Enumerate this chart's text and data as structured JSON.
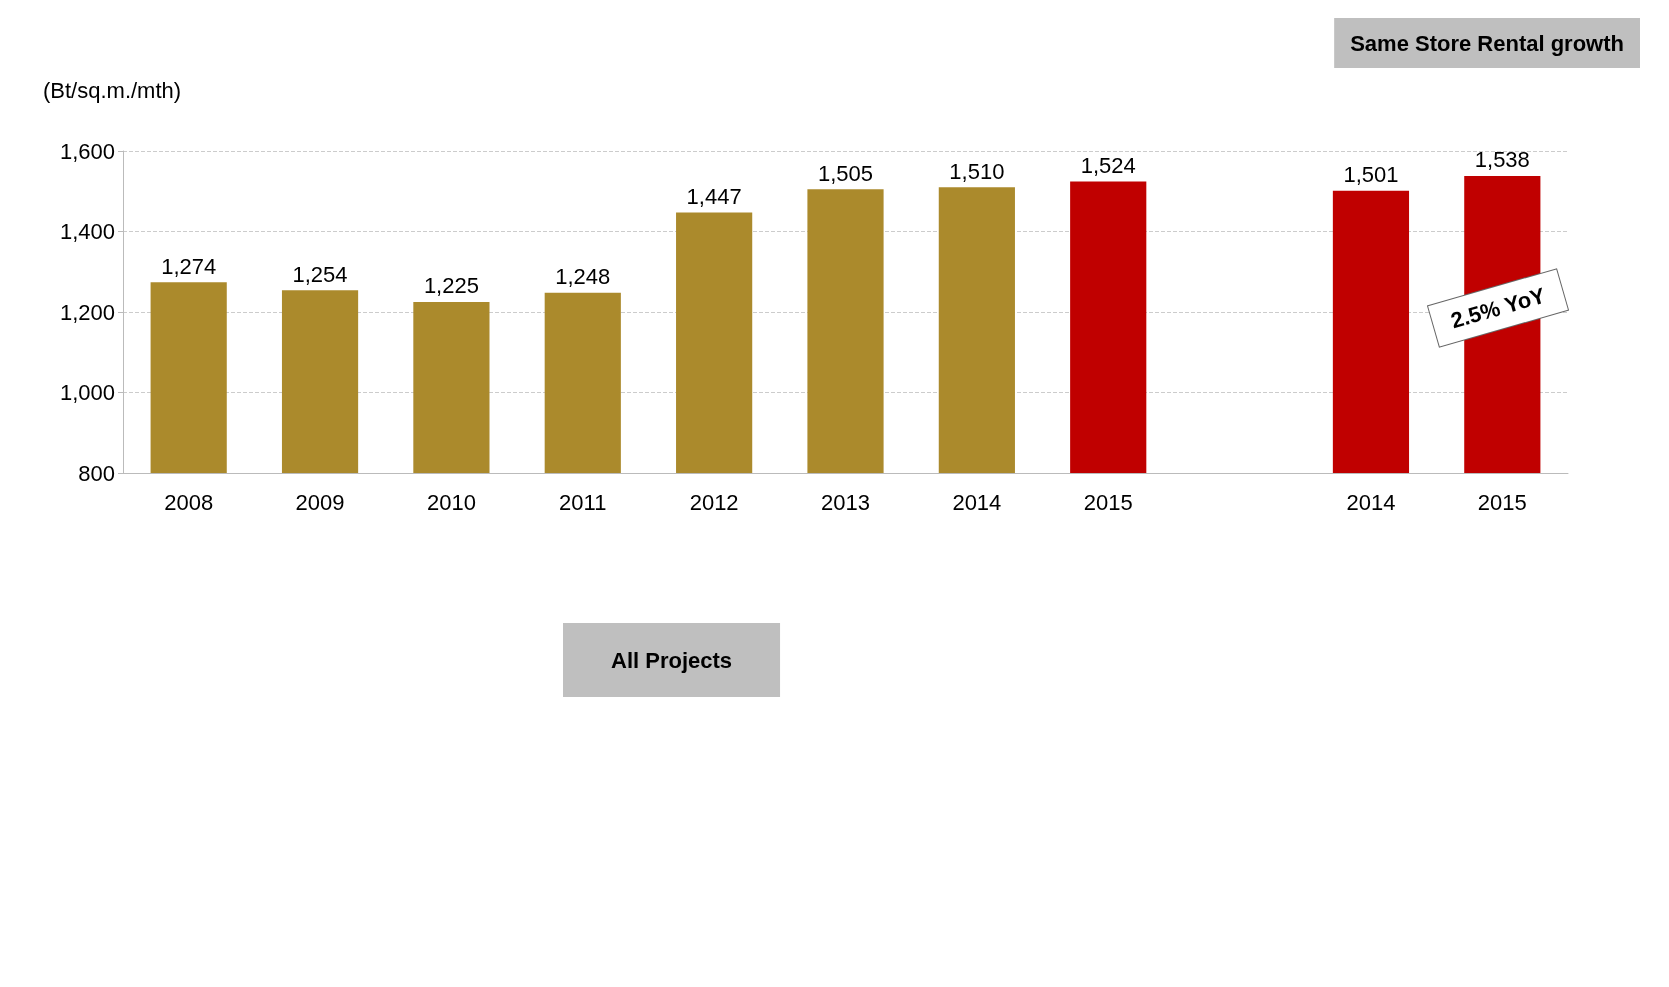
{
  "chart_data": {
    "type": "bar",
    "ylabel": "(Bt/sq.m./mth)",
    "categories": [
      "2008",
      "2009",
      "2010",
      "2011",
      "2012",
      "2013",
      "2014",
      "2015",
      null,
      "2014",
      "2015"
    ],
    "values": [
      1274,
      1254,
      1225,
      1248,
      1447,
      1505,
      1510,
      1524,
      null,
      1501,
      1538
    ],
    "value_labels": [
      "1,274",
      "1,254",
      "1,225",
      "1,248",
      "1,447",
      "1,505",
      "1,510",
      "1,524",
      null,
      "1,501",
      "1,538"
    ],
    "colors": [
      "#ab8a2c",
      "#ab8a2c",
      "#ab8a2c",
      "#ab8a2c",
      "#ab8a2c",
      "#ab8a2c",
      "#ab8a2c",
      "#c00000",
      null,
      "#c00000",
      "#c00000"
    ],
    "ylim": [
      800,
      1600
    ],
    "yticks": [
      800,
      {
        "value": 1000,
        "label": "1,000"
      },
      {
        "value": 1200,
        "label": "1,200"
      },
      {
        "value": 1400,
        "label": "1,400"
      },
      {
        "value": 1600,
        "label": "1,600"
      }
    ],
    "grid": "y",
    "annotations": [
      "Same Store Rental growth",
      "2.5% YoY",
      "All Projects"
    ]
  }
}
